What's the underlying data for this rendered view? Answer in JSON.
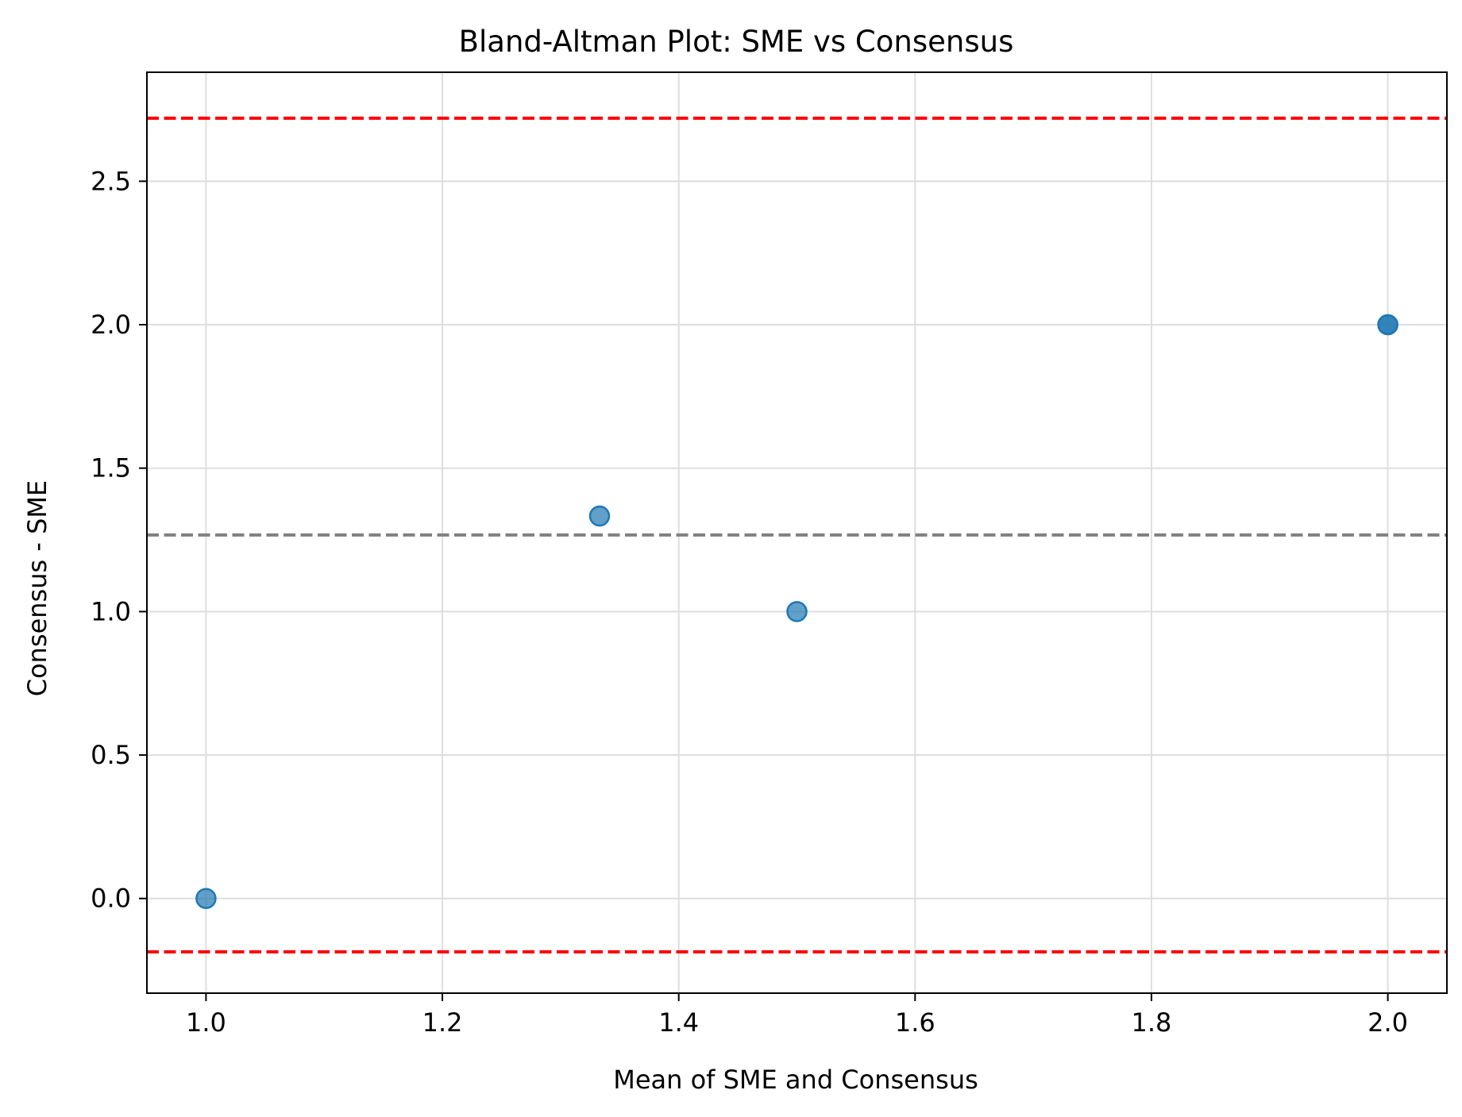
{
  "chart_data": {
    "type": "scatter",
    "title": "Bland-Altman Plot: SME vs Consensus",
    "xlabel": "Mean of SME and Consensus",
    "ylabel": "Consensus - SME",
    "xlim": [
      0.95,
      2.05
    ],
    "ylim": [
      -0.33,
      2.88
    ],
    "xticks": [
      1.0,
      1.2,
      1.4,
      1.6,
      1.8,
      2.0
    ],
    "xtick_labels": [
      "1.0",
      "1.2",
      "1.4",
      "1.6",
      "1.8",
      "2.0"
    ],
    "yticks": [
      0.0,
      0.5,
      1.0,
      1.5,
      2.0,
      2.5
    ],
    "ytick_labels": [
      "0.0",
      "0.5",
      "1.0",
      "1.5",
      "2.0",
      "2.5"
    ],
    "grid": true,
    "points": [
      {
        "x": 1.0,
        "y": 0.0
      },
      {
        "x": 1.333,
        "y": 1.333
      },
      {
        "x": 1.5,
        "y": 1.0
      },
      {
        "x": 2.0,
        "y": 2.0
      },
      {
        "x": 2.0,
        "y": 2.0
      }
    ],
    "reference_lines": [
      {
        "role": "mean-difference",
        "y": 1.267,
        "color": "#808080",
        "style": "dashed"
      },
      {
        "role": "upper-limit-of-agreement",
        "y": 2.72,
        "color": "#ff0000",
        "style": "dashed"
      },
      {
        "role": "lower-limit-of-agreement",
        "y": -0.186,
        "color": "#ff0000",
        "style": "dashed"
      }
    ],
    "point_color": "#1f77b4"
  }
}
